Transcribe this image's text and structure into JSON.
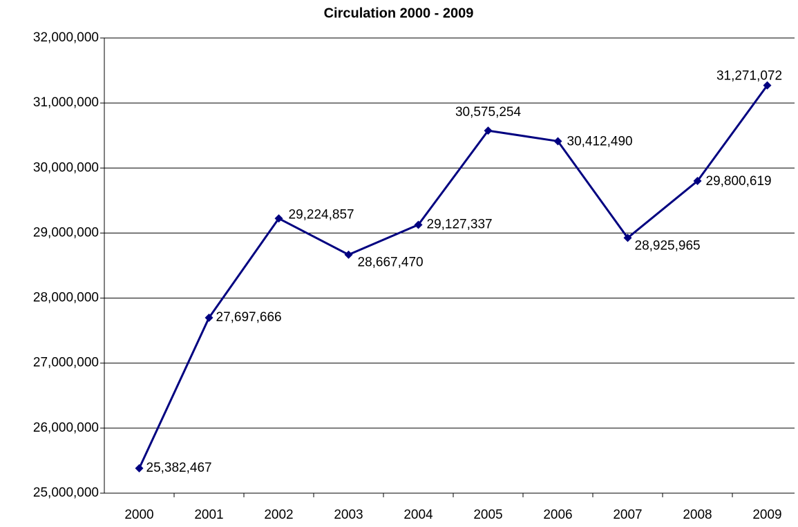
{
  "chart_data": {
    "type": "line",
    "title": "Circulation 2000 - 2009",
    "categories": [
      "2000",
      "2001",
      "2002",
      "2003",
      "2004",
      "2005",
      "2006",
      "2007",
      "2008",
      "2009"
    ],
    "series": [
      {
        "name": "Circulation",
        "color": "#000080",
        "values": [
          25382467,
          27697666,
          29224857,
          28667470,
          29127337,
          30575254,
          30412490,
          28925965,
          29800619,
          31271072
        ],
        "value_labels": [
          "25,382,467",
          "27,697,666",
          "29,224,857",
          "28,667,470",
          "29,127,337",
          "30,575,254",
          "30,412,490",
          "28,925,965",
          "29,800,619",
          "31,271,072"
        ]
      }
    ],
    "ylim": [
      25000000,
      32000000
    ],
    "yticks": [
      {
        "value": 25000000,
        "label": "25,000,000"
      },
      {
        "value": 26000000,
        "label": "26,000,000"
      },
      {
        "value": 27000000,
        "label": "27,000,000"
      },
      {
        "value": 28000000,
        "label": "28,000,000"
      },
      {
        "value": 29000000,
        "label": "29,000,000"
      },
      {
        "value": 30000000,
        "label": "30,000,000"
      },
      {
        "value": 31000000,
        "label": "31,000,000"
      },
      {
        "value": 32000000,
        "label": "32,000,000"
      }
    ],
    "grid": true
  }
}
